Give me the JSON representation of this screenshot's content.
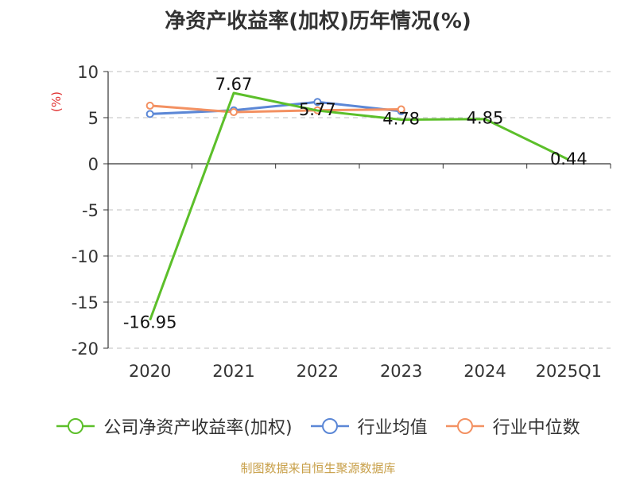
{
  "chart_data": {
    "type": "line",
    "title": "净资产收益率(加权)历年情况(%)",
    "ylabel": "(%)",
    "categories": [
      "2020",
      "2021",
      "2022",
      "2023",
      "2024",
      "2025Q1"
    ],
    "ylim": [
      -20,
      10
    ],
    "yticks": [
      10,
      5,
      0,
      -5,
      -10,
      -15,
      -20
    ],
    "grid": true,
    "legend_position": "bottom",
    "series": [
      {
        "name": "公司净资产收益率(加权)",
        "color": "#5cbf2a",
        "values": [
          -16.95,
          7.67,
          5.77,
          4.78,
          4.85,
          0.44
        ],
        "show_labels": true
      },
      {
        "name": "行业均值",
        "color": "#5b87d6",
        "values": [
          5.4,
          5.8,
          6.7,
          5.7,
          null,
          null
        ],
        "show_labels": false
      },
      {
        "name": "行业中位数",
        "color": "#f39162",
        "values": [
          6.3,
          5.6,
          5.8,
          5.9,
          null,
          null
        ],
        "show_labels": false
      }
    ]
  },
  "source": "制图数据来自恒生聚源数据库"
}
